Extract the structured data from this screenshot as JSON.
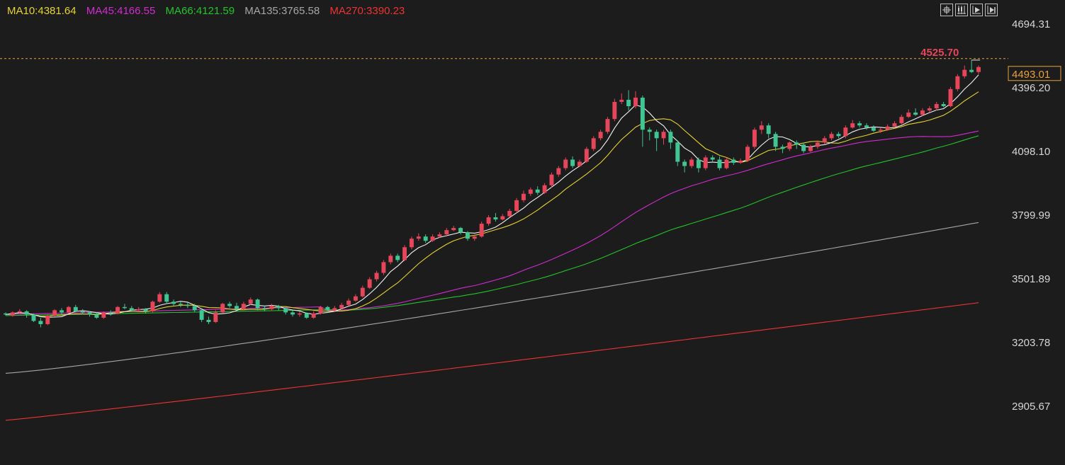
{
  "colors": {
    "background": "#1c1c1c",
    "up": "#e5465a",
    "down": "#3fc693",
    "grid": "#2a2a2a",
    "axis_text": "#d6d6d6",
    "last_price": "#e8a23c"
  },
  "legend": [
    {
      "key": "ma10",
      "label": "MA10:4381.64",
      "color": "#e6d32e"
    },
    {
      "key": "ma45",
      "label": "MA45:4166.55",
      "color": "#d22bd2"
    },
    {
      "key": "ma66",
      "label": "MA66:4121.59",
      "color": "#22c32a"
    },
    {
      "key": "ma135",
      "label": "MA135:3765.58",
      "color": "#a6a6a6"
    },
    {
      "key": "ma270",
      "label": "MA270:3390.23",
      "color": "#ee3333"
    }
  ],
  "toolbar": [
    {
      "name": "crosshair-icon"
    },
    {
      "name": "candlestick-mode-icon"
    },
    {
      "name": "play-icon"
    },
    {
      "name": "step-forward-icon"
    }
  ],
  "chart_data": {
    "type": "candlestick",
    "title": "",
    "xlabel": "",
    "ylabel": "",
    "ylim": [
      2770,
      4745
    ],
    "y_ticks": [
      "4694.31",
      "4396.20",
      "4098.10",
      "3799.99",
      "3501.89",
      "3203.78",
      "2905.67"
    ],
    "x_ticks": [],
    "grid": false,
    "last_price": {
      "value": 4493.01,
      "label": "4493.01"
    },
    "high_marker": {
      "value": 4525.7,
      "label": "4525.70"
    },
    "ma_endpoints": {
      "ma5": 4445,
      "ma10": 4381.64,
      "ma45": 4166.55,
      "ma66": 4121.59,
      "ma135": 3765.58,
      "ma270": 3390.23
    },
    "candles": [
      [
        3340,
        3335,
        3345,
        3330
      ],
      [
        3330,
        3345,
        3350,
        3325
      ],
      [
        3345,
        3350,
        3360,
        3340
      ],
      [
        3350,
        3335,
        3355,
        3320
      ],
      [
        3335,
        3305,
        3340,
        3300
      ],
      [
        3305,
        3290,
        3320,
        3275
      ],
      [
        3290,
        3330,
        3335,
        3285
      ],
      [
        3330,
        3355,
        3360,
        3325
      ],
      [
        3355,
        3345,
        3365,
        3335
      ],
      [
        3345,
        3370,
        3375,
        3340
      ],
      [
        3370,
        3350,
        3380,
        3345
      ],
      [
        3350,
        3345,
        3360,
        3335
      ],
      [
        3345,
        3335,
        3350,
        3325
      ],
      [
        3335,
        3320,
        3345,
        3315
      ],
      [
        3320,
        3345,
        3350,
        3315
      ],
      [
        3345,
        3340,
        3355,
        3330
      ],
      [
        3340,
        3370,
        3375,
        3335
      ],
      [
        3370,
        3365,
        3385,
        3360
      ],
      [
        3365,
        3355,
        3375,
        3350
      ],
      [
        3355,
        3360,
        3370,
        3345
      ],
      [
        3360,
        3350,
        3365,
        3340
      ],
      [
        3350,
        3395,
        3400,
        3345
      ],
      [
        3395,
        3430,
        3440,
        3390
      ],
      [
        3430,
        3395,
        3440,
        3385
      ],
      [
        3395,
        3385,
        3405,
        3375
      ],
      [
        3385,
        3380,
        3395,
        3370
      ],
      [
        3380,
        3375,
        3390,
        3365
      ],
      [
        3375,
        3355,
        3385,
        3345
      ],
      [
        3355,
        3310,
        3365,
        3300
      ],
      [
        3310,
        3300,
        3325,
        3290
      ],
      [
        3300,
        3345,
        3355,
        3295
      ],
      [
        3345,
        3385,
        3390,
        3340
      ],
      [
        3385,
        3375,
        3395,
        3365
      ],
      [
        3375,
        3360,
        3390,
        3355
      ],
      [
        3360,
        3385,
        3395,
        3355
      ],
      [
        3385,
        3405,
        3415,
        3380
      ],
      [
        3405,
        3365,
        3410,
        3355
      ],
      [
        3365,
        3360,
        3375,
        3350
      ],
      [
        3360,
        3375,
        3385,
        3355
      ],
      [
        3375,
        3365,
        3380,
        3355
      ],
      [
        3365,
        3345,
        3370,
        3335
      ],
      [
        3345,
        3335,
        3355,
        3325
      ],
      [
        3335,
        3340,
        3350,
        3325
      ],
      [
        3340,
        3320,
        3345,
        3315
      ],
      [
        3320,
        3340,
        3350,
        3315
      ],
      [
        3340,
        3370,
        3375,
        3335
      ],
      [
        3370,
        3355,
        3375,
        3345
      ],
      [
        3355,
        3365,
        3375,
        3350
      ],
      [
        3365,
        3380,
        3390,
        3360
      ],
      [
        3380,
        3400,
        3410,
        3375
      ],
      [
        3400,
        3420,
        3430,
        3395
      ],
      [
        3420,
        3460,
        3470,
        3415
      ],
      [
        3460,
        3500,
        3510,
        3455
      ],
      [
        3500,
        3530,
        3540,
        3490
      ],
      [
        3530,
        3580,
        3590,
        3520
      ],
      [
        3580,
        3610,
        3620,
        3570
      ],
      [
        3610,
        3590,
        3620,
        3580
      ],
      [
        3590,
        3650,
        3660,
        3585
      ],
      [
        3650,
        3690,
        3700,
        3640
      ],
      [
        3690,
        3700,
        3715,
        3680
      ],
      [
        3700,
        3680,
        3710,
        3670
      ],
      [
        3680,
        3700,
        3710,
        3675
      ],
      [
        3700,
        3710,
        3720,
        3695
      ],
      [
        3710,
        3730,
        3740,
        3700
      ],
      [
        3730,
        3740,
        3750,
        3725
      ],
      [
        3740,
        3720,
        3745,
        3710
      ],
      [
        3720,
        3690,
        3725,
        3680
      ],
      [
        3690,
        3700,
        3710,
        3680
      ],
      [
        3700,
        3760,
        3770,
        3695
      ],
      [
        3760,
        3790,
        3800,
        3750
      ],
      [
        3790,
        3780,
        3810,
        3770
      ],
      [
        3780,
        3795,
        3805,
        3775
      ],
      [
        3795,
        3820,
        3830,
        3790
      ],
      [
        3820,
        3870,
        3880,
        3810
      ],
      [
        3870,
        3900,
        3915,
        3860
      ],
      [
        3900,
        3920,
        3930,
        3890
      ],
      [
        3920,
        3905,
        3935,
        3895
      ],
      [
        3905,
        3940,
        3950,
        3900
      ],
      [
        3940,
        3990,
        4000,
        3930
      ],
      [
        3990,
        4020,
        4030,
        3980
      ],
      [
        4020,
        4060,
        4070,
        4010
      ],
      [
        4060,
        4030,
        4075,
        4020
      ],
      [
        4030,
        4050,
        4060,
        4025
      ],
      [
        4050,
        4110,
        4120,
        4045
      ],
      [
        4110,
        4160,
        4170,
        4100
      ],
      [
        4160,
        4190,
        4200,
        4150
      ],
      [
        4190,
        4250,
        4260,
        4180
      ],
      [
        4250,
        4330,
        4345,
        4240
      ],
      [
        4330,
        4340,
        4370,
        4320
      ],
      [
        4340,
        4310,
        4385,
        4290
      ],
      [
        4310,
        4350,
        4380,
        4300
      ],
      [
        4350,
        4200,
        4360,
        4120
      ],
      [
        4200,
        4190,
        4210,
        4150
      ],
      [
        4190,
        4160,
        4200,
        4100
      ],
      [
        4160,
        4190,
        4200,
        4130
      ],
      [
        4190,
        4140,
        4200,
        4110
      ],
      [
        4140,
        4050,
        4150,
        4030
      ],
      [
        4050,
        4030,
        4060,
        4000
      ],
      [
        4030,
        4060,
        4070,
        4020
      ],
      [
        4060,
        4020,
        4070,
        4000
      ],
      [
        4020,
        4070,
        4080,
        4010
      ],
      [
        4070,
        4060,
        4080,
        4045
      ],
      [
        4060,
        4020,
        4075,
        4010
      ],
      [
        4020,
        4060,
        4070,
        4015
      ],
      [
        4060,
        4045,
        4070,
        4035
      ],
      [
        4045,
        4055,
        4065,
        4040
      ],
      [
        4055,
        4120,
        4130,
        4050
      ],
      [
        4120,
        4200,
        4210,
        4110
      ],
      [
        4200,
        4220,
        4240,
        4180
      ],
      [
        4220,
        4180,
        4230,
        4160
      ],
      [
        4180,
        4120,
        4190,
        4100
      ],
      [
        4120,
        4110,
        4130,
        4090
      ],
      [
        4110,
        4140,
        4145,
        4100
      ],
      [
        4140,
        4130,
        4150,
        4110
      ],
      [
        4130,
        4100,
        4140,
        4090
      ],
      [
        4100,
        4120,
        4130,
        4095
      ],
      [
        4120,
        4140,
        4150,
        4110
      ],
      [
        4140,
        4160,
        4170,
        4130
      ],
      [
        4160,
        4180,
        4190,
        4150
      ],
      [
        4180,
        4170,
        4190,
        4160
      ],
      [
        4170,
        4210,
        4220,
        4160
      ],
      [
        4210,
        4230,
        4245,
        4205
      ],
      [
        4230,
        4220,
        4240,
        4210
      ],
      [
        4220,
        4210,
        4230,
        4200
      ],
      [
        4210,
        4195,
        4220,
        4190
      ],
      [
        4195,
        4200,
        4210,
        4185
      ],
      [
        4200,
        4215,
        4225,
        4195
      ],
      [
        4215,
        4230,
        4240,
        4210
      ],
      [
        4230,
        4260,
        4270,
        4225
      ],
      [
        4260,
        4280,
        4295,
        4255
      ],
      [
        4280,
        4270,
        4300,
        4265
      ],
      [
        4270,
        4290,
        4300,
        4265
      ],
      [
        4290,
        4300,
        4310,
        4280
      ],
      [
        4300,
        4320,
        4330,
        4290
      ],
      [
        4320,
        4310,
        4330,
        4305
      ],
      [
        4310,
        4390,
        4400,
        4305
      ],
      [
        4390,
        4450,
        4460,
        4380
      ],
      [
        4450,
        4480,
        4500,
        4440
      ],
      [
        4480,
        4470,
        4526,
        4465
      ],
      [
        4470,
        4493,
        4500,
        4460
      ]
    ]
  }
}
